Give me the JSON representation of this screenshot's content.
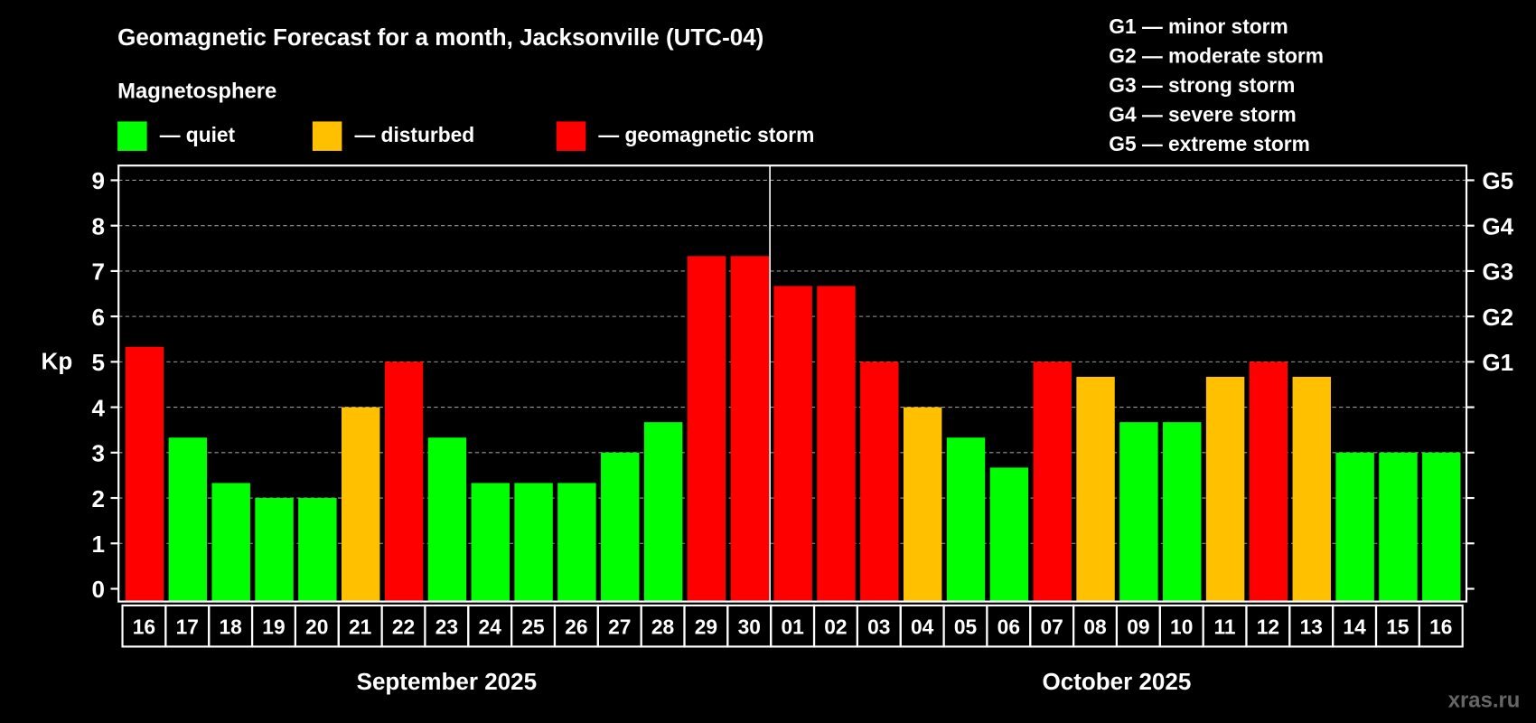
{
  "chart_data": {
    "type": "bar",
    "title": "Geomagnetic Forecast for a month, Jacksonville (UTC-04)",
    "ylabel": "Kp",
    "ylim": [
      0,
      9
    ],
    "yticks": [
      "0",
      "1",
      "2",
      "3",
      "4",
      "5",
      "6",
      "7",
      "8",
      "9"
    ],
    "right_ticks": [
      {
        "value": 5,
        "label": "G1"
      },
      {
        "value": 6,
        "label": "G2"
      },
      {
        "value": 7,
        "label": "G3"
      },
      {
        "value": 8,
        "label": "G4"
      },
      {
        "value": 9,
        "label": "G5"
      }
    ],
    "grid": true,
    "categories": [
      "16",
      "17",
      "18",
      "19",
      "20",
      "21",
      "22",
      "23",
      "24",
      "25",
      "26",
      "27",
      "28",
      "29",
      "30",
      "01",
      "02",
      "03",
      "04",
      "05",
      "06",
      "07",
      "08",
      "09",
      "10",
      "11",
      "12",
      "13",
      "14",
      "15",
      "16"
    ],
    "values": [
      5.33,
      3.33,
      2.33,
      2,
      2,
      4,
      5,
      3.33,
      2.33,
      2.33,
      2.33,
      3,
      3.67,
      7.33,
      7.33,
      6.67,
      6.67,
      5,
      4,
      3.33,
      2.67,
      5,
      4.67,
      3.67,
      3.67,
      4.67,
      5,
      4.67,
      3,
      3,
      3
    ],
    "status": [
      "storm",
      "quiet",
      "quiet",
      "quiet",
      "quiet",
      "disturbed",
      "storm",
      "quiet",
      "quiet",
      "quiet",
      "quiet",
      "quiet",
      "quiet",
      "storm",
      "storm",
      "storm",
      "storm",
      "storm",
      "disturbed",
      "quiet",
      "quiet",
      "storm",
      "disturbed",
      "quiet",
      "quiet",
      "disturbed",
      "storm",
      "disturbed",
      "quiet",
      "quiet",
      "quiet"
    ],
    "months": [
      {
        "label": "September 2025",
        "start": 0,
        "count": 15
      },
      {
        "label": "October 2025",
        "start": 15,
        "count": 16
      }
    ],
    "legend": {
      "title": "Magnetosphere",
      "items": [
        {
          "key": "quiet",
          "label": "— quiet",
          "color": "#00ff00"
        },
        {
          "key": "disturbed",
          "label": "— disturbed",
          "color": "#ffc000"
        },
        {
          "key": "storm",
          "label": "— geomagnetic storm",
          "color": "#ff0000"
        }
      ]
    },
    "storm_scale": [
      "G1 — minor storm",
      "G2 — moderate storm",
      "G3 — strong storm",
      "G4 — severe storm",
      "G5 — extreme storm"
    ]
  },
  "watermark": "xras.ru"
}
